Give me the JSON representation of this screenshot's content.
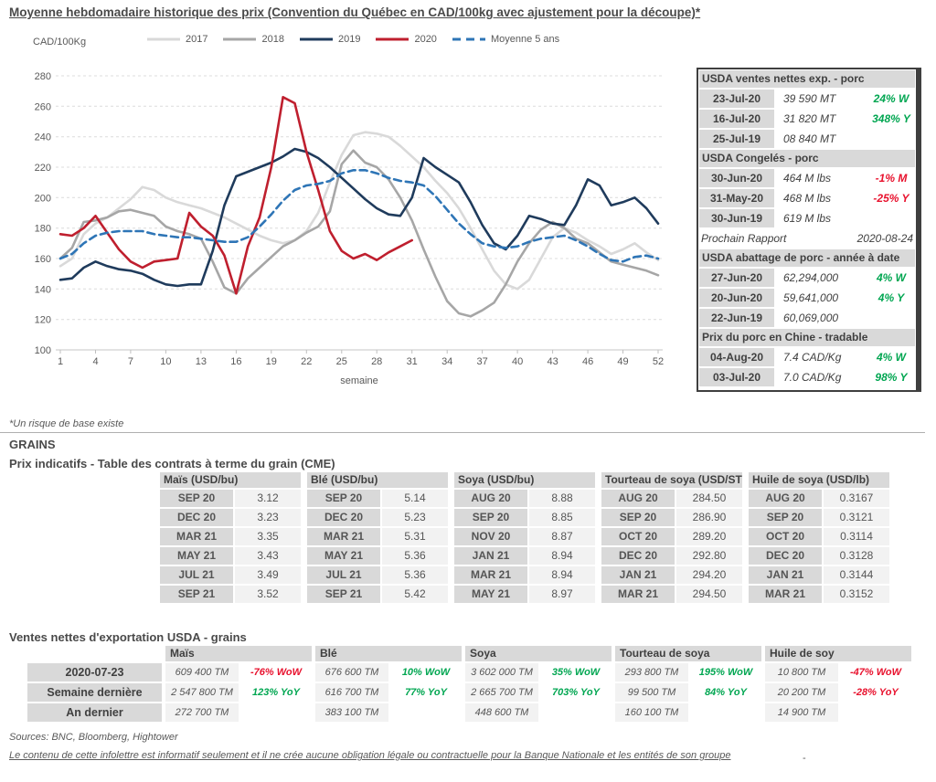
{
  "title": "Moyenne hebdomadaire historique des prix (Convention du Québec en CAD/100kg avec ajustement pour la découpe)*",
  "chart_data": {
    "type": "line",
    "y_axis_unit": "CAD/100Kg",
    "x_label": "semaine",
    "ylim": [
      100,
      280
    ],
    "y_ticks": [
      280,
      260,
      240,
      220,
      200,
      180,
      160,
      140,
      120,
      100
    ],
    "x_ticks": [
      1,
      4,
      7,
      10,
      13,
      16,
      19,
      22,
      25,
      28,
      31,
      34,
      37,
      40,
      43,
      46,
      49,
      52
    ],
    "grid": "horizontal-dashed",
    "legend_position": "top",
    "series": [
      {
        "name": "2017",
        "color": "#d9d9d9",
        "dash": null,
        "values": [
          155,
          160,
          176,
          183,
          187,
          193,
          199,
          207,
          205,
          200,
          197,
          195,
          193,
          190,
          187,
          183,
          179,
          175,
          172,
          170,
          172,
          178,
          190,
          210,
          228,
          241,
          243,
          242,
          240,
          234,
          227,
          220,
          211,
          203,
          193,
          180,
          166,
          152,
          143,
          140,
          146,
          160,
          174,
          180,
          177,
          172,
          168,
          163,
          166,
          170,
          164,
          159
        ]
      },
      {
        "name": "2018",
        "color": "#a6a6a6",
        "dash": null,
        "values": [
          160,
          167,
          184,
          185,
          187,
          191,
          192,
          190,
          188,
          181,
          178,
          176,
          173,
          158,
          141,
          137,
          147,
          154,
          161,
          168,
          172,
          177,
          181,
          191,
          222,
          231,
          223,
          220,
          212,
          200,
          185,
          166,
          148,
          132,
          124,
          122,
          126,
          131,
          143,
          158,
          170,
          179,
          184,
          180,
          173,
          170,
          164,
          158,
          156,
          154,
          152,
          149
        ]
      },
      {
        "name": "2019",
        "color": "#1f3b5c",
        "dash": null,
        "values": [
          146,
          147,
          154,
          158,
          155,
          153,
          152,
          150,
          146,
          143,
          142,
          143,
          143,
          165,
          195,
          214,
          217,
          220,
          223,
          227,
          232,
          230,
          226,
          220,
          213,
          206,
          199,
          193,
          189,
          188,
          200,
          226,
          220,
          215,
          210,
          197,
          182,
          170,
          166,
          175,
          188,
          186,
          183,
          182,
          195,
          212,
          208,
          195,
          197,
          200,
          193,
          183
        ]
      },
      {
        "name": "2020",
        "color": "#bf1f2e",
        "dash": null,
        "values": [
          176,
          175,
          180,
          188,
          177,
          166,
          158,
          154,
          158,
          159,
          160,
          190,
          181,
          175,
          162,
          137,
          168,
          187,
          220,
          266,
          262,
          230,
          205,
          178,
          165,
          160,
          163,
          159,
          164,
          168,
          172
        ]
      },
      {
        "name": "Moyenne 5 ans",
        "color": "#2e75b6",
        "dash": "8 5",
        "values": [
          160,
          163,
          170,
          175,
          177,
          178,
          178,
          178,
          176,
          175,
          174,
          174,
          173,
          172,
          171,
          171,
          174,
          181,
          189,
          198,
          205,
          208,
          209,
          211,
          216,
          218,
          218,
          216,
          213,
          211,
          210,
          208,
          201,
          192,
          183,
          176,
          170,
          168,
          167,
          168,
          171,
          173,
          174,
          175,
          172,
          168,
          163,
          159,
          158,
          161,
          162,
          160
        ]
      }
    ]
  },
  "side_panel": {
    "blocks": [
      {
        "type": "section",
        "header": "USDA ventes nettes exp. - porc",
        "rows": [
          {
            "date": "23-Jul-20",
            "value": "39 590  MT",
            "pct": "24% W",
            "dir": "up"
          },
          {
            "date": "16-Jul-20",
            "value": "31 820  MT",
            "pct": "348% Y",
            "dir": "up"
          },
          {
            "date": "25-Jul-19",
            "value": "08 840  MT",
            "pct": "",
            "dir": "none"
          }
        ]
      },
      {
        "type": "section",
        "header": "USDA Congelés - porc",
        "rows": [
          {
            "date": "30-Jun-20",
            "value": "464 M lbs",
            "pct": "-1% M",
            "dir": "down"
          },
          {
            "date": "31-May-20",
            "value": "468 M lbs",
            "pct": "-25% Y",
            "dir": "down"
          },
          {
            "date": "30-Jun-19",
            "value": "619 M lbs",
            "pct": "",
            "dir": "none"
          }
        ]
      },
      {
        "type": "note",
        "left": "Prochain Rapport",
        "right": "2020-08-24"
      },
      {
        "type": "section",
        "header": "USDA abattage de porc - année à date",
        "rows": [
          {
            "date": "27-Jun-20",
            "value": "62,294,000",
            "pct": "4% W",
            "dir": "up"
          },
          {
            "date": "20-Jun-20",
            "value": "59,641,000",
            "pct": "4% Y",
            "dir": "up"
          },
          {
            "date": "22-Jun-19",
            "value": "60,069,000",
            "pct": "",
            "dir": "none"
          }
        ]
      },
      {
        "type": "section",
        "header": "Prix du porc en Chine - tradable",
        "rows": [
          {
            "date": "04-Aug-20",
            "value": "7.4 CAD/Kg",
            "pct": "4% W",
            "dir": "up"
          },
          {
            "date": "03-Jul-20",
            "value": "7.0 CAD/Kg",
            "pct": "98% Y",
            "dir": "up"
          }
        ]
      }
    ]
  },
  "footnote": "*Un risque de base existe",
  "grains": {
    "heading": "GRAINS",
    "subheading": "Prix indicatifs - Table des contrats à terme du grain (CME)",
    "groups": [
      {
        "header": "Maïs (USD/bu)",
        "rows": [
          [
            "SEP 20",
            "3.12"
          ],
          [
            "DEC 20",
            "3.23"
          ],
          [
            "MAR 21",
            "3.35"
          ],
          [
            "MAY 21",
            "3.43"
          ],
          [
            "JUL 21",
            "3.49"
          ],
          [
            "SEP 21",
            "3.52"
          ]
        ]
      },
      {
        "header": "Blé (USD/bu)",
        "rows": [
          [
            "SEP 20",
            "5.14"
          ],
          [
            "DEC 20",
            "5.23"
          ],
          [
            "MAR 21",
            "5.31"
          ],
          [
            "MAY 21",
            "5.36"
          ],
          [
            "JUL 21",
            "5.36"
          ],
          [
            "SEP 21",
            "5.42"
          ]
        ]
      },
      {
        "header": "Soya (USD/bu)",
        "rows": [
          [
            "AUG 20",
            "8.88"
          ],
          [
            "SEP 20",
            "8.85"
          ],
          [
            "NOV 20",
            "8.87"
          ],
          [
            "JAN 21",
            "8.94"
          ],
          [
            "MAR 21",
            "8.94"
          ],
          [
            "MAY 21",
            "8.97"
          ]
        ]
      },
      {
        "header": "Tourteau de soya (USD/ST",
        "rows": [
          [
            "AUG 20",
            "284.50"
          ],
          [
            "SEP 20",
            "286.90"
          ],
          [
            "OCT 20",
            "289.20"
          ],
          [
            "DEC 20",
            "292.80"
          ],
          [
            "JAN 21",
            "294.20"
          ],
          [
            "MAR 21",
            "294.50"
          ]
        ]
      },
      {
        "header": "Huile de soya (USD/lb)",
        "rows": [
          [
            "AUG 20",
            "0.3167"
          ],
          [
            "SEP 20",
            "0.3121"
          ],
          [
            "OCT 20",
            "0.3114"
          ],
          [
            "DEC 20",
            "0.3128"
          ],
          [
            "JAN 21",
            "0.3144"
          ],
          [
            "MAR 21",
            "0.3152"
          ]
        ]
      }
    ]
  },
  "exports": {
    "title": "Ventes nettes d'exportation USDA - grains",
    "columns": [
      "Maïs",
      "Blé",
      "Soya",
      "Tourteau de soya",
      "Huile de soy"
    ],
    "rows": [
      {
        "label": "2020-07-23",
        "cells": [
          {
            "qty": "609 400 TM",
            "pct": "-76% WoW",
            "dir": "down"
          },
          {
            "qty": "676 600 TM",
            "pct": "10% WoW",
            "dir": "up"
          },
          {
            "qty": "3 602 000 TM",
            "pct": "35% WoW",
            "dir": "up"
          },
          {
            "qty": "293 800 TM",
            "pct": "195% WoW",
            "dir": "up"
          },
          {
            "qty": "10 800 TM",
            "pct": "-47% WoW",
            "dir": "down"
          }
        ]
      },
      {
        "label": "Semaine dernière",
        "cells": [
          {
            "qty": "2 547 800 TM",
            "pct": "123% YoY",
            "dir": "up"
          },
          {
            "qty": "616 700 TM",
            "pct": "77% YoY",
            "dir": "up"
          },
          {
            "qty": "2 665 700 TM",
            "pct": "703% YoY",
            "dir": "up"
          },
          {
            "qty": "99 500 TM",
            "pct": "84% YoY",
            "dir": "up"
          },
          {
            "qty": "20 200 TM",
            "pct": "-28% YoY",
            "dir": "down"
          }
        ]
      },
      {
        "label": "An dernier",
        "cells": [
          {
            "qty": "272 700 TM",
            "pct": "",
            "dir": "none"
          },
          {
            "qty": "383 100 TM",
            "pct": "",
            "dir": "none"
          },
          {
            "qty": "448 600 TM",
            "pct": "",
            "dir": "none"
          },
          {
            "qty": "160 100 TM",
            "pct": "",
            "dir": "none"
          },
          {
            "qty": "14 900 TM",
            "pct": "",
            "dir": "none"
          }
        ]
      }
    ]
  },
  "sources": "Sources: BNC, Bloomberg, Hightower",
  "disclaimer": "Le contenu de cette infolettre est informatif seulement et il ne crée aucune obligation légale ou contractuelle pour la Banque Nationale et les entités de son groupe",
  "trailing_dash": "-",
  "colors": {
    "positive": "#00a651",
    "negative": "#e8112d",
    "header_bg": "#d9d9d9",
    "cell_bg": "#f2f2f2",
    "panel_border": "#3f3f3f"
  }
}
